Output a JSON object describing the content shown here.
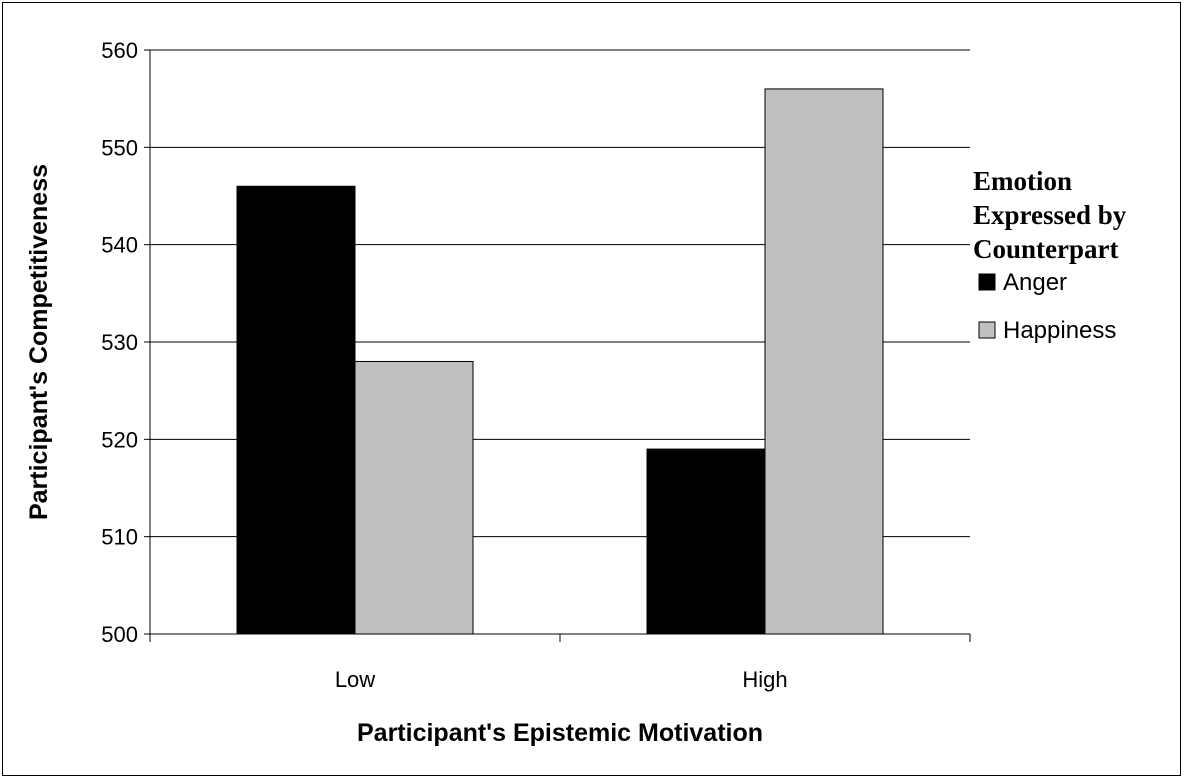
{
  "chart_data": {
    "type": "bar",
    "title": "",
    "xlabel": "Participant's Epistemic Motivation",
    "ylabel": "Participant's Competitiveness",
    "categories": [
      "Low",
      "High"
    ],
    "series": [
      {
        "name": "Anger",
        "values": [
          546,
          519
        ],
        "color": "#000000"
      },
      {
        "name": "Happiness",
        "values": [
          528,
          556
        ],
        "color": "#c0c0c0"
      }
    ],
    "ylim": [
      500,
      560
    ],
    "yticks": [
      500,
      510,
      520,
      530,
      540,
      550,
      560
    ],
    "grid": true,
    "legend": {
      "title_lines": [
        "Emotion",
        "Expressed by",
        "Counterpart"
      ],
      "placement": "right"
    }
  }
}
